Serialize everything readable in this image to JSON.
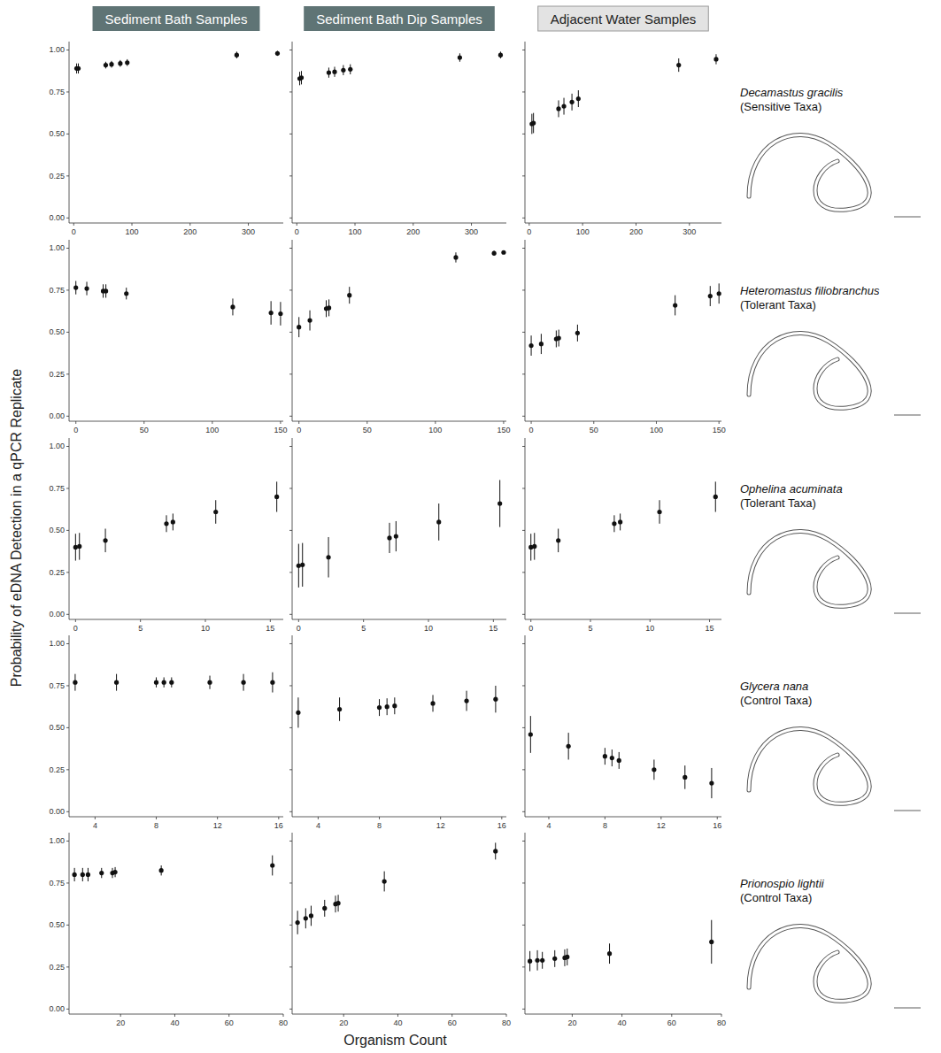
{
  "column_headers": [
    "Sediment Bath Samples",
    "Sediment Bath Dip Samples",
    "Adjacent Water Samples"
  ],
  "row_labels": [
    {
      "species": "Decamastus gracilis",
      "group": "(Sensitive Taxa)"
    },
    {
      "species": "Heteromastus filiobranchus",
      "group": "(Tolerant Taxa)"
    },
    {
      "species": "Ophelina acuminata",
      "group": "(Tolerant Taxa)"
    },
    {
      "species": "Glycera nana",
      "group": "(Control Taxa)"
    },
    {
      "species": "Prionospio lightii",
      "group": "(Control Taxa)"
    }
  ],
  "ylabel": "Probability of eDNA Detection in a qPCR Replicate",
  "xlabel": "Organism Count",
  "chart_data": [
    {
      "type": "scatter",
      "x": [
        5,
        8,
        55,
        65,
        80,
        92,
        280,
        350
      ],
      "values": [
        0.89,
        0.89,
        0.91,
        0.915,
        0.92,
        0.925,
        0.97,
        0.98
      ],
      "error": [
        0.03,
        0.03,
        0.02,
        0.02,
        0.02,
        0.02,
        0.02,
        0.015
      ],
      "xlim": [
        -8,
        360
      ],
      "ylim": [
        -0.03,
        1.05
      ],
      "xticks": [
        0,
        100,
        200,
        300
      ],
      "yticks": [
        {
          "value": 0,
          "label": "0.00"
        },
        {
          "value": 0.25,
          "label": "0.25"
        },
        {
          "value": 0.5,
          "label": "0.50"
        },
        {
          "value": 0.75,
          "label": "0.75"
        },
        {
          "value": 1,
          "label": "1.00"
        }
      ]
    },
    {
      "type": "scatter",
      "x": [
        5,
        8,
        55,
        65,
        80,
        92,
        280,
        350
      ],
      "values": [
        0.83,
        0.835,
        0.865,
        0.87,
        0.88,
        0.885,
        0.955,
        0.97
      ],
      "error": [
        0.04,
        0.04,
        0.03,
        0.03,
        0.03,
        0.03,
        0.025,
        0.02
      ],
      "xlim": [
        -8,
        360
      ],
      "ylim": [
        -0.03,
        1.05
      ],
      "xticks": [
        0,
        100,
        200,
        300
      ],
      "yticks": [
        {
          "value": 0,
          "label": "0.00"
        },
        {
          "value": 0.25,
          "label": "0.25"
        },
        {
          "value": 0.5,
          "label": "0.50"
        },
        {
          "value": 0.75,
          "label": "0.75"
        },
        {
          "value": 1,
          "label": "1.00"
        }
      ],
      "tick_labels": "x"
    },
    {
      "type": "scatter",
      "x": [
        5,
        8,
        55,
        65,
        80,
        92,
        280,
        350
      ],
      "values": [
        0.56,
        0.565,
        0.65,
        0.665,
        0.69,
        0.71,
        0.91,
        0.945
      ],
      "error": [
        0.06,
        0.06,
        0.05,
        0.05,
        0.05,
        0.05,
        0.04,
        0.03
      ],
      "xlim": [
        -8,
        360
      ],
      "ylim": [
        -0.03,
        1.05
      ],
      "xticks": [
        0,
        100,
        200,
        300
      ],
      "yticks": [
        {
          "value": 0,
          "label": "0.00"
        },
        {
          "value": 0.25,
          "label": "0.25"
        },
        {
          "value": 0.5,
          "label": "0.50"
        },
        {
          "value": 0.75,
          "label": "0.75"
        },
        {
          "value": 1,
          "label": "1.00"
        }
      ],
      "tick_labels": "x"
    },
    {
      "type": "scatter",
      "x": [
        0,
        8,
        20,
        22,
        37,
        115,
        143,
        150
      ],
      "values": [
        0.765,
        0.76,
        0.745,
        0.745,
        0.73,
        0.65,
        0.615,
        0.61
      ],
      "error": [
        0.04,
        0.04,
        0.04,
        0.04,
        0.035,
        0.05,
        0.07,
        0.07
      ],
      "xlim": [
        -5,
        152
      ],
      "ylim": [
        -0.03,
        1.05
      ],
      "xticks": [
        0,
        50,
        100,
        150
      ],
      "yticks": [
        {
          "value": 0,
          "label": "0.00"
        },
        {
          "value": 0.25,
          "label": "0.25"
        },
        {
          "value": 0.5,
          "label": "0.50"
        },
        {
          "value": 0.75,
          "label": "0.75"
        },
        {
          "value": 1,
          "label": "1.00"
        }
      ]
    },
    {
      "type": "scatter",
      "x": [
        0,
        8,
        20,
        22,
        37,
        115,
        143,
        150
      ],
      "values": [
        0.53,
        0.57,
        0.64,
        0.645,
        0.72,
        0.945,
        0.97,
        0.975
      ],
      "error": [
        0.06,
        0.06,
        0.05,
        0.05,
        0.05,
        0.03,
        0.015,
        0.01
      ],
      "xlim": [
        -5,
        152
      ],
      "ylim": [
        -0.03,
        1.05
      ],
      "xticks": [
        0,
        50,
        100,
        150
      ],
      "yticks": [
        {
          "value": 0,
          "label": "0.00"
        },
        {
          "value": 0.25,
          "label": "0.25"
        },
        {
          "value": 0.5,
          "label": "0.50"
        },
        {
          "value": 0.75,
          "label": "0.75"
        },
        {
          "value": 1,
          "label": "1.00"
        }
      ],
      "tick_labels": "x"
    },
    {
      "type": "scatter",
      "x": [
        0,
        8,
        20,
        22,
        37,
        115,
        143,
        150
      ],
      "values": [
        0.42,
        0.43,
        0.46,
        0.465,
        0.495,
        0.66,
        0.715,
        0.73
      ],
      "error": [
        0.06,
        0.06,
        0.05,
        0.05,
        0.05,
        0.06,
        0.06,
        0.06
      ],
      "xlim": [
        -5,
        152
      ],
      "ylim": [
        -0.03,
        1.05
      ],
      "xticks": [
        0,
        50,
        100,
        150
      ],
      "yticks": [
        {
          "value": 0,
          "label": "0.00"
        },
        {
          "value": 0.25,
          "label": "0.25"
        },
        {
          "value": 0.5,
          "label": "0.50"
        },
        {
          "value": 0.75,
          "label": "0.75"
        },
        {
          "value": 1,
          "label": "1.00"
        }
      ],
      "tick_labels": "x"
    },
    {
      "type": "scatter",
      "x": [
        0,
        0.3,
        2.3,
        7,
        7.5,
        10.8,
        15.5
      ],
      "values": [
        0.4,
        0.405,
        0.44,
        0.54,
        0.55,
        0.61,
        0.7
      ],
      "error": [
        0.08,
        0.08,
        0.07,
        0.05,
        0.05,
        0.07,
        0.09
      ],
      "xlim": [
        -0.5,
        16
      ],
      "ylim": [
        -0.03,
        1.05
      ],
      "xticks": [
        0,
        5,
        10,
        15
      ],
      "yticks": [
        {
          "value": 0,
          "label": "0.00"
        },
        {
          "value": 0.25,
          "label": "0.25"
        },
        {
          "value": 0.5,
          "label": "0.50"
        },
        {
          "value": 0.75,
          "label": "0.75"
        },
        {
          "value": 1,
          "label": "1.00"
        }
      ]
    },
    {
      "type": "scatter",
      "x": [
        0,
        0.3,
        2.3,
        7,
        7.5,
        10.8,
        15.5
      ],
      "values": [
        0.29,
        0.295,
        0.34,
        0.455,
        0.465,
        0.55,
        0.66
      ],
      "error": [
        0.13,
        0.13,
        0.12,
        0.09,
        0.09,
        0.11,
        0.14
      ],
      "xlim": [
        -0.5,
        16
      ],
      "ylim": [
        -0.03,
        1.05
      ],
      "xticks": [
        0,
        5,
        10,
        15
      ],
      "yticks": [
        {
          "value": 0,
          "label": "0.00"
        },
        {
          "value": 0.25,
          "label": "0.25"
        },
        {
          "value": 0.5,
          "label": "0.50"
        },
        {
          "value": 0.75,
          "label": "0.75"
        },
        {
          "value": 1,
          "label": "1.00"
        }
      ],
      "tick_labels": "x"
    },
    {
      "type": "scatter",
      "x": [
        0,
        0.3,
        2.3,
        7,
        7.5,
        10.8,
        15.5
      ],
      "values": [
        0.4,
        0.405,
        0.44,
        0.54,
        0.55,
        0.61,
        0.7
      ],
      "error": [
        0.08,
        0.08,
        0.07,
        0.05,
        0.05,
        0.07,
        0.09
      ],
      "xlim": [
        -0.5,
        16
      ],
      "ylim": [
        -0.03,
        1.05
      ],
      "xticks": [
        0,
        5,
        10,
        15
      ],
      "yticks": [
        {
          "value": 0,
          "label": "0.00"
        },
        {
          "value": 0.25,
          "label": "0.25"
        },
        {
          "value": 0.5,
          "label": "0.50"
        },
        {
          "value": 0.75,
          "label": "0.75"
        },
        {
          "value": 1,
          "label": "1.00"
        }
      ],
      "tick_labels": "x"
    },
    {
      "type": "scatter",
      "x": [
        2.7,
        5.4,
        8,
        8.5,
        9,
        11.5,
        13.7,
        15.6
      ],
      "values": [
        0.77,
        0.77,
        0.77,
        0.77,
        0.77,
        0.77,
        0.77,
        0.77
      ],
      "error": [
        0.05,
        0.05,
        0.03,
        0.03,
        0.03,
        0.04,
        0.05,
        0.06
      ],
      "xlim": [
        2.3,
        16.3
      ],
      "ylim": [
        -0.03,
        1.05
      ],
      "xticks": [
        4,
        8,
        12,
        16
      ],
      "yticks": [
        {
          "value": 0,
          "label": "0.00"
        },
        {
          "value": 0.25,
          "label": "0.25"
        },
        {
          "value": 0.5,
          "label": "0.50"
        },
        {
          "value": 0.75,
          "label": "0.75"
        },
        {
          "value": 1,
          "label": "1.00"
        }
      ]
    },
    {
      "type": "scatter",
      "x": [
        2.7,
        5.4,
        8,
        8.5,
        9,
        11.5,
        13.7,
        15.6
      ],
      "values": [
        0.59,
        0.61,
        0.62,
        0.625,
        0.63,
        0.645,
        0.66,
        0.67
      ],
      "error": [
        0.09,
        0.07,
        0.05,
        0.05,
        0.05,
        0.05,
        0.06,
        0.08
      ],
      "xlim": [
        2.3,
        16.3
      ],
      "ylim": [
        -0.03,
        1.05
      ],
      "xticks": [
        4,
        8,
        12,
        16
      ],
      "yticks": [
        {
          "value": 0,
          "label": "0.00"
        },
        {
          "value": 0.25,
          "label": "0.25"
        },
        {
          "value": 0.5,
          "label": "0.50"
        },
        {
          "value": 0.75,
          "label": "0.75"
        },
        {
          "value": 1,
          "label": "1.00"
        }
      ],
      "tick_labels": "x"
    },
    {
      "type": "scatter",
      "x": [
        2.7,
        5.4,
        8,
        8.5,
        9,
        11.5,
        13.7,
        15.6
      ],
      "values": [
        0.46,
        0.39,
        0.33,
        0.32,
        0.305,
        0.25,
        0.205,
        0.17
      ],
      "error": [
        0.11,
        0.08,
        0.05,
        0.05,
        0.05,
        0.06,
        0.07,
        0.09
      ],
      "xlim": [
        2.3,
        16.3
      ],
      "ylim": [
        -0.03,
        1.05
      ],
      "xticks": [
        4,
        8,
        12,
        16
      ],
      "yticks": [
        {
          "value": 0,
          "label": "0.00"
        },
        {
          "value": 0.25,
          "label": "0.25"
        },
        {
          "value": 0.5,
          "label": "0.50"
        },
        {
          "value": 0.75,
          "label": "0.75"
        },
        {
          "value": 1,
          "label": "1.00"
        }
      ],
      "tick_labels": "x"
    },
    {
      "type": "scatter",
      "x": [
        3,
        6,
        8,
        13,
        17,
        18,
        35,
        76
      ],
      "values": [
        0.8,
        0.8,
        0.8,
        0.81,
        0.81,
        0.815,
        0.825,
        0.855
      ],
      "error": [
        0.04,
        0.04,
        0.04,
        0.03,
        0.03,
        0.03,
        0.03,
        0.06
      ],
      "xlim": [
        1,
        80
      ],
      "ylim": [
        -0.03,
        1.05
      ],
      "xticks": [
        20,
        40,
        60,
        80
      ],
      "yticks": [
        {
          "value": 0,
          "label": "0.00"
        },
        {
          "value": 0.25,
          "label": "0.25"
        },
        {
          "value": 0.5,
          "label": "0.50"
        },
        {
          "value": 0.75,
          "label": "0.75"
        },
        {
          "value": 1,
          "label": "1.00"
        }
      ]
    },
    {
      "type": "scatter",
      "x": [
        3,
        6,
        8,
        13,
        17,
        18,
        35,
        76
      ],
      "values": [
        0.515,
        0.54,
        0.555,
        0.6,
        0.625,
        0.63,
        0.76,
        0.94
      ],
      "error": [
        0.07,
        0.06,
        0.06,
        0.05,
        0.05,
        0.05,
        0.06,
        0.05
      ],
      "xlim": [
        1,
        80
      ],
      "ylim": [
        -0.03,
        1.05
      ],
      "xticks": [
        20,
        40,
        60,
        80
      ],
      "yticks": [
        {
          "value": 0,
          "label": "0.00"
        },
        {
          "value": 0.25,
          "label": "0.25"
        },
        {
          "value": 0.5,
          "label": "0.50"
        },
        {
          "value": 0.75,
          "label": "0.75"
        },
        {
          "value": 1,
          "label": "1.00"
        }
      ],
      "tick_labels": "x"
    },
    {
      "type": "scatter",
      "x": [
        3,
        6,
        8,
        13,
        17,
        18,
        35,
        76
      ],
      "values": [
        0.285,
        0.29,
        0.29,
        0.3,
        0.305,
        0.31,
        0.33,
        0.4
      ],
      "error": [
        0.06,
        0.06,
        0.05,
        0.05,
        0.05,
        0.05,
        0.06,
        0.13
      ],
      "xlim": [
        1,
        80
      ],
      "ylim": [
        -0.03,
        1.05
      ],
      "xticks": [
        20,
        40,
        60,
        80
      ],
      "yticks": [
        {
          "value": 0,
          "label": "0.00"
        },
        {
          "value": 0.25,
          "label": "0.25"
        },
        {
          "value": 0.5,
          "label": "0.50"
        },
        {
          "value": 0.75,
          "label": "0.75"
        },
        {
          "value": 1,
          "label": "1.00"
        }
      ],
      "tick_labels": "x"
    }
  ]
}
